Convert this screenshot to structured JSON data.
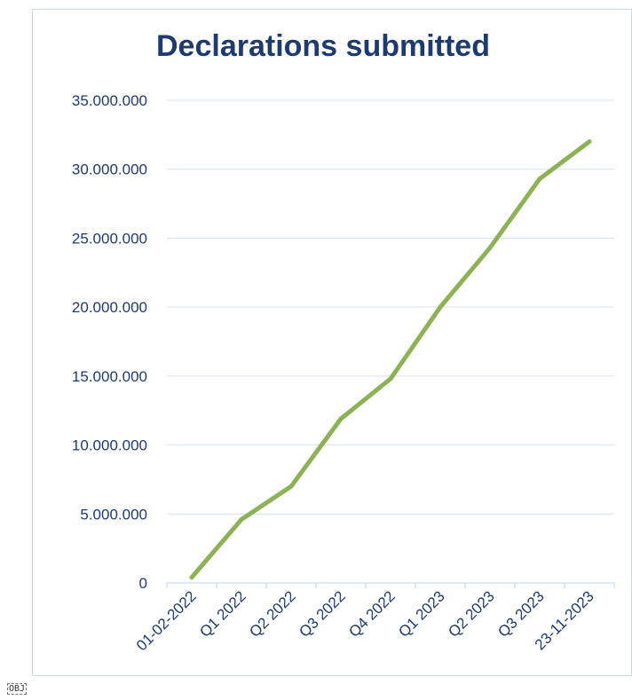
{
  "chart_data": {
    "type": "line",
    "title": "Declarations submitted",
    "categories": [
      "01-02-2022",
      "Q1 2022",
      "Q2 2022",
      "Q3 2022",
      "Q4 2022",
      "Q1 2023",
      "Q2 2023",
      "Q3 2023",
      "23-11-2023"
    ],
    "series": [
      {
        "values": [
          400000,
          4600000,
          7000000,
          11900000,
          14800000,
          20000000,
          24300000,
          29300000,
          32000000
        ]
      }
    ],
    "ylim": [
      0,
      35000000
    ],
    "yticks": [
      0,
      5000000,
      10000000,
      15000000,
      20000000,
      25000000,
      30000000,
      35000000
    ],
    "ytick_labels": [
      "0",
      "5.000.000",
      "10.000.000",
      "15.000.000",
      "20.000.000",
      "25.000.000",
      "30.000.000",
      "35.000.000"
    ],
    "grid": true,
    "legend": false
  },
  "colors": {
    "line": "#8db255",
    "title": "#1f3b6e",
    "axis_text": "#1f3b6e",
    "grid": "#d6e2ef"
  },
  "footer_tag": "OBJ"
}
